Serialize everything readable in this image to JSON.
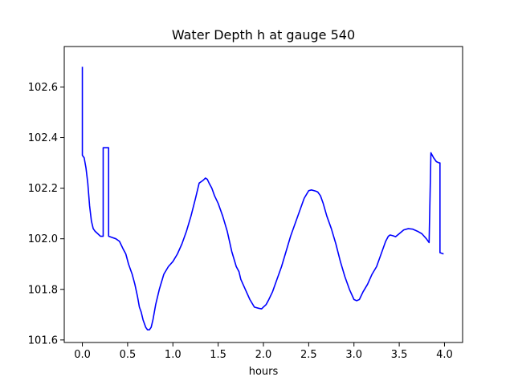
{
  "chart_data": {
    "type": "line",
    "title": "Water Depth h at gauge 540",
    "xlabel": "hours",
    "ylabel": "",
    "xlim": [
      -0.2,
      4.2
    ],
    "ylim": [
      101.59,
      102.76
    ],
    "xticks": [
      0.0,
      0.5,
      1.0,
      1.5,
      2.0,
      2.5,
      3.0,
      3.5,
      4.0
    ],
    "xtick_labels": [
      "0.0",
      "0.5",
      "1.0",
      "1.5",
      "2.0",
      "2.5",
      "3.0",
      "3.5",
      "4.0"
    ],
    "yticks": [
      101.6,
      101.8,
      102.0,
      102.2,
      102.4,
      102.6
    ],
    "ytick_labels": [
      "101.6",
      "101.8",
      "102.0",
      "102.2",
      "102.4",
      "102.6"
    ],
    "grid": false,
    "series": [
      {
        "color": "#0000ff",
        "x": [
          0.0,
          0.0,
          0.02,
          0.04,
          0.06,
          0.08,
          0.1,
          0.12,
          0.14,
          0.17,
          0.2,
          0.23,
          0.23,
          0.29,
          0.29,
          0.33,
          0.37,
          0.41,
          0.45,
          0.48,
          0.51,
          0.55,
          0.58,
          0.61,
          0.63,
          0.65,
          0.67,
          0.7,
          0.72,
          0.74,
          0.76,
          0.78,
          0.81,
          0.85,
          0.9,
          0.95,
          1.0,
          1.05,
          1.1,
          1.15,
          1.2,
          1.25,
          1.29,
          1.33,
          1.36,
          1.38,
          1.4,
          1.43,
          1.46,
          1.5,
          1.55,
          1.6,
          1.65,
          1.7,
          1.73,
          1.75,
          1.8,
          1.85,
          1.9,
          1.95,
          1.98,
          2.0,
          2.03,
          2.06,
          2.1,
          2.15,
          2.2,
          2.25,
          2.3,
          2.35,
          2.4,
          2.45,
          2.5,
          2.53,
          2.56,
          2.58,
          2.6,
          2.63,
          2.66,
          2.7,
          2.75,
          2.8,
          2.85,
          2.9,
          2.95,
          3.0,
          3.03,
          3.06,
          3.1,
          3.15,
          3.2,
          3.25,
          3.3,
          3.35,
          3.38,
          3.4,
          3.43,
          3.46,
          3.5,
          3.55,
          3.6,
          3.65,
          3.7,
          3.75,
          3.8,
          3.83,
          3.85,
          3.85,
          3.88,
          3.91,
          3.94,
          3.95,
          3.95,
          3.99
        ],
        "y": [
          102.68,
          102.33,
          102.32,
          102.28,
          102.22,
          102.13,
          102.07,
          102.04,
          102.03,
          102.02,
          102.01,
          102.01,
          102.36,
          102.36,
          102.01,
          102.005,
          102.0,
          101.99,
          101.96,
          101.94,
          101.9,
          101.86,
          101.82,
          101.77,
          101.73,
          101.71,
          101.68,
          101.65,
          101.64,
          101.64,
          101.65,
          101.68,
          101.74,
          101.8,
          101.86,
          101.89,
          101.91,
          101.94,
          101.98,
          102.03,
          102.09,
          102.16,
          102.22,
          102.23,
          102.24,
          102.235,
          102.22,
          102.2,
          102.17,
          102.14,
          102.09,
          102.03,
          101.95,
          101.89,
          101.87,
          101.84,
          101.8,
          101.76,
          101.73,
          101.725,
          101.723,
          101.73,
          101.74,
          101.76,
          101.79,
          101.84,
          101.89,
          101.95,
          102.01,
          102.06,
          102.11,
          102.16,
          102.19,
          102.193,
          102.19,
          102.188,
          102.185,
          102.17,
          102.14,
          102.09,
          102.04,
          101.98,
          101.91,
          101.85,
          101.8,
          101.76,
          101.755,
          101.76,
          101.79,
          101.82,
          101.86,
          101.89,
          101.94,
          101.99,
          102.01,
          102.015,
          102.012,
          102.008,
          102.02,
          102.035,
          102.04,
          102.038,
          102.03,
          102.02,
          102.0,
          101.985,
          102.34,
          102.34,
          102.32,
          102.305,
          102.3,
          102.3,
          101.945,
          101.94
        ]
      }
    ]
  }
}
